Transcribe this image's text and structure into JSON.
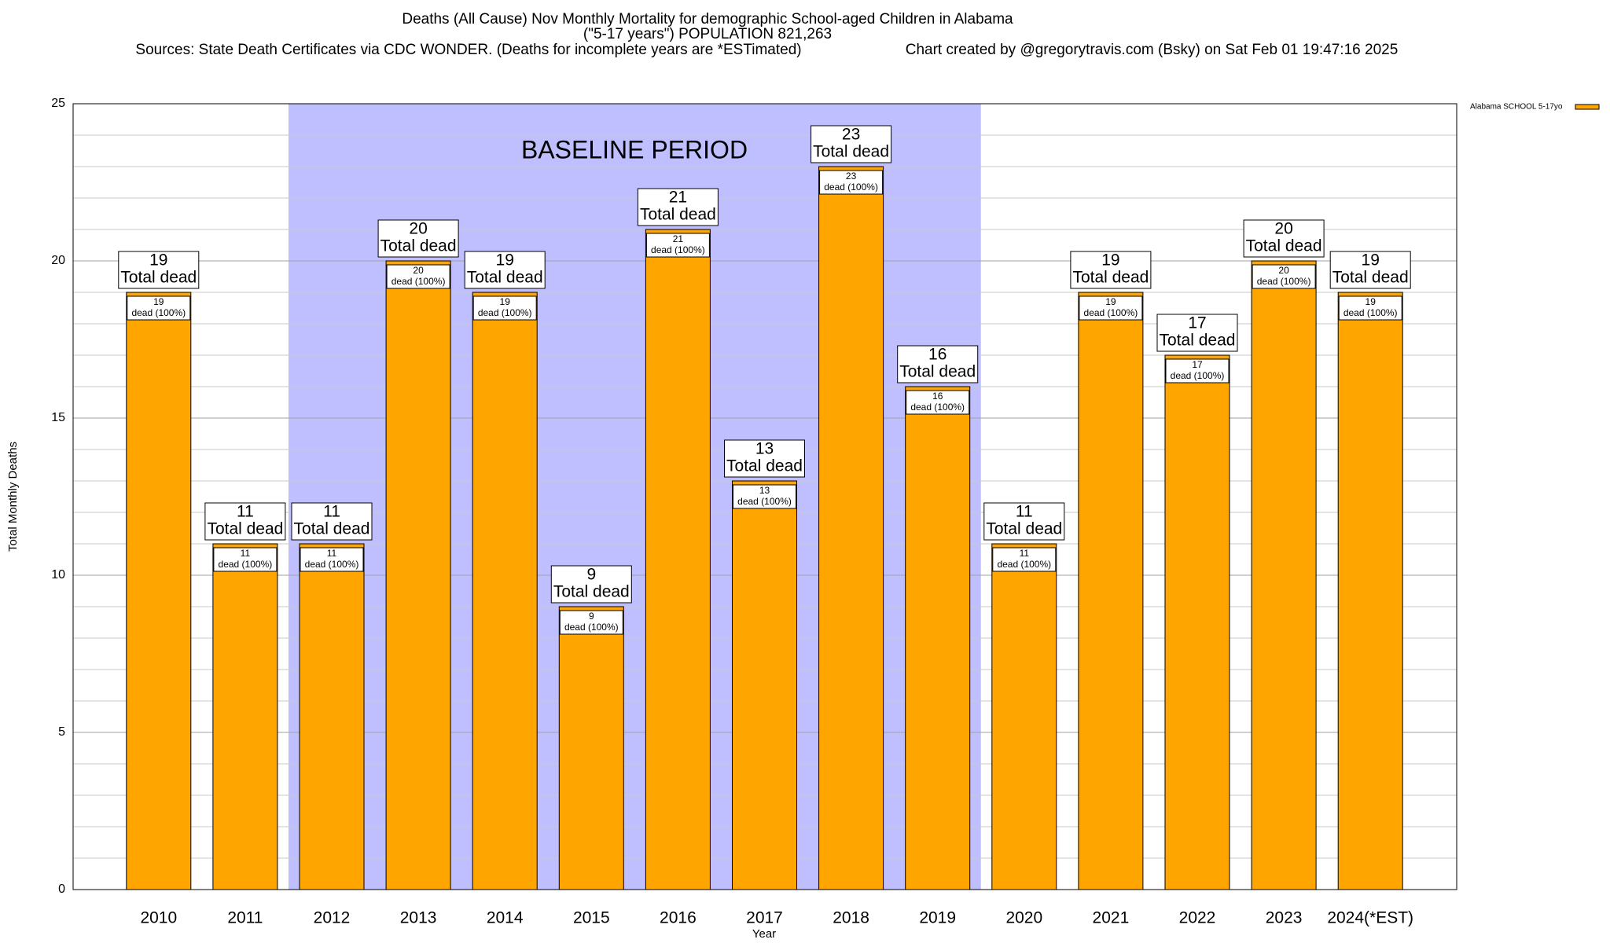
{
  "chart_data": {
    "type": "bar",
    "title_lines": [
      "Deaths (All Cause) Nov Monthly Mortality for demographic School-aged Children in Alabama",
      "(\"5-17 years\") POPULATION 821,263"
    ],
    "sources": "Sources: State Death Certificates via CDC WONDER. (Deaths for incomplete years are *ESTimated)",
    "credit": "Chart created by @gregorytravis.com (Bsky) on Sat Feb 01 19:47:16 2025",
    "x_label": "Year",
    "y_label": "Total Monthly Deaths",
    "categories": [
      "2010",
      "2011",
      "2012",
      "2013",
      "2014",
      "2015",
      "2016",
      "2017",
      "2018",
      "2019",
      "2020",
      "2021",
      "2022",
      "2023",
      "2024(*EST)"
    ],
    "series": [
      {
        "name": "Alabama SCHOOL 5-17yo",
        "color": "#ffa500",
        "values": [
          19,
          11,
          11,
          20,
          19,
          9,
          21,
          13,
          23,
          16,
          11,
          19,
          17,
          20,
          19
        ]
      }
    ],
    "total_label": "Total dead",
    "inner_label": "dead (100%)",
    "baseline": {
      "label": "BASELINE PERIOD",
      "from": "2012",
      "to": "2019",
      "color": "#bfbfff"
    },
    "ylim": [
      0,
      25
    ],
    "yticks": [
      0,
      5,
      10,
      15,
      20,
      25
    ],
    "minor_yticks": [
      1,
      2,
      3,
      4,
      6,
      7,
      8,
      9,
      11,
      12,
      13,
      14,
      16,
      17,
      18,
      19,
      21,
      22,
      23,
      24
    ],
    "grid": true,
    "legend": "top-right"
  }
}
